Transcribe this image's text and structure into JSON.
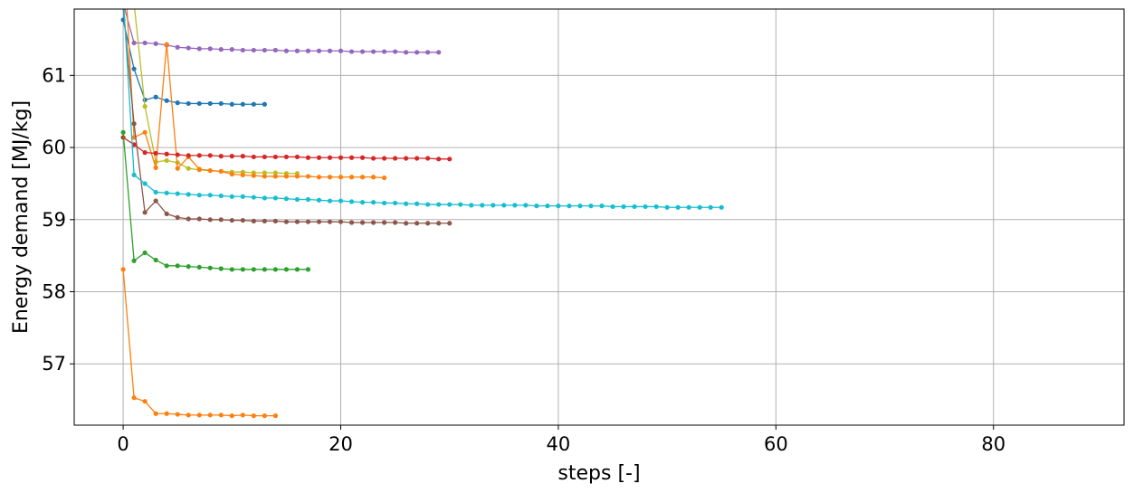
{
  "chart_data": {
    "type": "line",
    "title": "",
    "xlabel": "steps [-]",
    "ylabel": "Energy demand [MJ/kg]",
    "xlim": [
      -4.5,
      92.0
    ],
    "ylim": [
      56.15,
      61.92
    ],
    "xticks": [
      0,
      20,
      40,
      60,
      80
    ],
    "yticks": [
      57,
      58,
      59,
      60,
      61
    ],
    "xtick_labels": [
      "0",
      "20",
      "40",
      "60",
      "80"
    ],
    "ytick_labels": [
      "57",
      "58",
      "59",
      "60",
      "61"
    ],
    "grid": true,
    "legend": "none",
    "series": [
      {
        "color": "#9467bd",
        "values": [
          62.0,
          61.45,
          61.45,
          61.44,
          61.42,
          61.39,
          61.38,
          61.37,
          61.37,
          61.36,
          61.36,
          61.35,
          61.35,
          61.35,
          61.35,
          61.34,
          61.34,
          61.34,
          61.34,
          61.34,
          61.34,
          61.33,
          61.33,
          61.33,
          61.33,
          61.33,
          61.32,
          61.32,
          61.32,
          61.32
        ]
      },
      {
        "color": "#1f77b4",
        "values": [
          61.77,
          61.09,
          60.66,
          60.7,
          60.65,
          60.62,
          60.61,
          60.61,
          60.61,
          60.61,
          60.6,
          60.6,
          60.6,
          60.6
        ]
      },
      {
        "color": "#bcbd22",
        "values": [
          62.6,
          62.0,
          60.57,
          59.8,
          59.82,
          59.79,
          59.71,
          59.69,
          59.68,
          59.67,
          59.66,
          59.66,
          59.65,
          59.65,
          59.65,
          59.64,
          59.64
        ]
      },
      {
        "color": "#ff7f0e",
        "values": [
          62.9,
          60.14,
          60.21,
          59.72,
          61.43,
          59.71,
          59.87,
          59.7,
          59.68,
          59.67,
          59.63,
          59.62,
          59.61,
          59.6,
          59.6,
          59.6,
          59.6,
          59.6,
          59.59,
          59.59,
          59.59,
          59.59,
          59.59,
          59.59,
          59.58
        ]
      },
      {
        "color": "#d62728",
        "values": [
          60.14,
          60.04,
          59.93,
          59.92,
          59.91,
          59.9,
          59.89,
          59.89,
          59.89,
          59.88,
          59.88,
          59.88,
          59.87,
          59.87,
          59.87,
          59.87,
          59.87,
          59.86,
          59.86,
          59.86,
          59.86,
          59.86,
          59.86,
          59.85,
          59.85,
          59.85,
          59.85,
          59.85,
          59.85,
          59.84,
          59.84
        ]
      },
      {
        "color": "#8c564b",
        "values": [
          61.95,
          60.33,
          59.1,
          59.26,
          59.08,
          59.03,
          59.01,
          59.01,
          59.0,
          59.0,
          58.99,
          58.99,
          58.98,
          58.98,
          58.98,
          58.97,
          58.97,
          58.97,
          58.97,
          58.97,
          58.97,
          58.96,
          58.96,
          58.96,
          58.96,
          58.96,
          58.95,
          58.95,
          58.95,
          58.95,
          58.95
        ]
      },
      {
        "color": "#17becf",
        "values": [
          62.1,
          59.62,
          59.5,
          59.38,
          59.37,
          59.36,
          59.35,
          59.34,
          59.34,
          59.33,
          59.32,
          59.32,
          59.31,
          59.3,
          59.3,
          59.29,
          59.28,
          59.28,
          59.27,
          59.26,
          59.26,
          59.25,
          59.24,
          59.24,
          59.23,
          59.23,
          59.22,
          59.22,
          59.21,
          59.21,
          59.21,
          59.21,
          59.2,
          59.2,
          59.2,
          59.2,
          59.2,
          59.2,
          59.19,
          59.19,
          59.19,
          59.19,
          59.19,
          59.19,
          59.19,
          59.18,
          59.18,
          59.18,
          59.18,
          59.18,
          59.17,
          59.17,
          59.17,
          59.17,
          59.17,
          59.17
        ]
      },
      {
        "color": "#2ca02c",
        "values": [
          60.21,
          58.43,
          58.54,
          58.44,
          58.36,
          58.36,
          58.35,
          58.34,
          58.33,
          58.32,
          58.31,
          58.31,
          58.31,
          58.31,
          58.31,
          58.31,
          58.31,
          58.31
        ]
      },
      {
        "color": "#ff7f0e",
        "values": [
          58.31,
          56.53,
          56.48,
          56.31,
          56.31,
          56.3,
          56.29,
          56.29,
          56.29,
          56.29,
          56.28,
          56.29,
          56.28,
          56.28,
          56.28
        ]
      }
    ]
  }
}
